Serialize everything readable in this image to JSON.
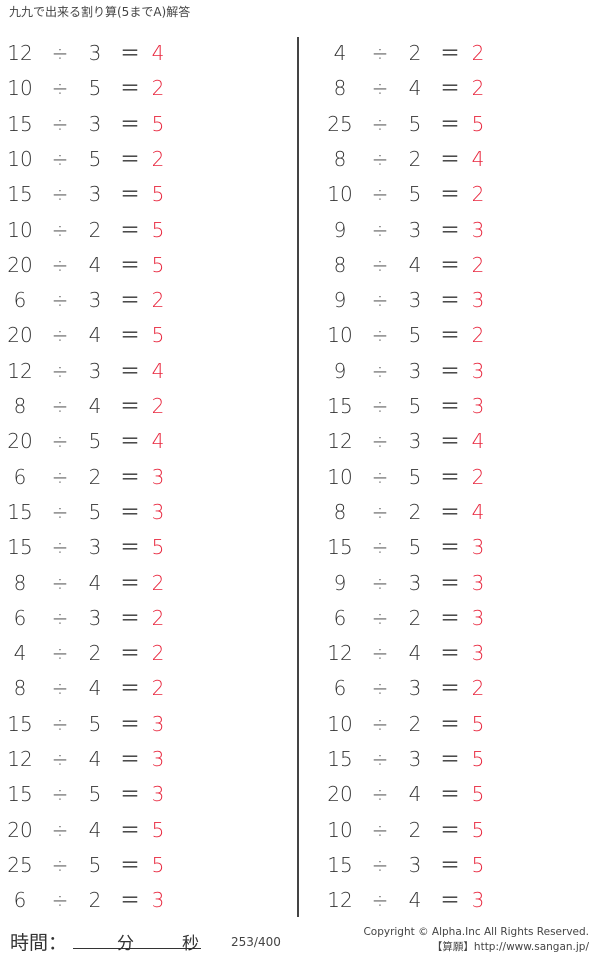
{
  "title": "九九で出来る割り算(5までA)解答",
  "operator": "÷",
  "equals": "＝",
  "answer_color": "#e8263d",
  "left_problems": [
    [
      "12",
      "3",
      "4"
    ],
    [
      "10",
      "5",
      "2"
    ],
    [
      "15",
      "3",
      "5"
    ],
    [
      "10",
      "5",
      "2"
    ],
    [
      "15",
      "3",
      "5"
    ],
    [
      "10",
      "2",
      "5"
    ],
    [
      "20",
      "4",
      "5"
    ],
    [
      "6",
      "3",
      "2"
    ],
    [
      "20",
      "4",
      "5"
    ],
    [
      "12",
      "3",
      "4"
    ],
    [
      "8",
      "4",
      "2"
    ],
    [
      "20",
      "5",
      "4"
    ],
    [
      "6",
      "2",
      "3"
    ],
    [
      "15",
      "5",
      "3"
    ],
    [
      "15",
      "3",
      "5"
    ],
    [
      "8",
      "4",
      "2"
    ],
    [
      "6",
      "3",
      "2"
    ],
    [
      "4",
      "2",
      "2"
    ],
    [
      "8",
      "4",
      "2"
    ],
    [
      "15",
      "5",
      "3"
    ],
    [
      "12",
      "4",
      "3"
    ],
    [
      "15",
      "5",
      "3"
    ],
    [
      "20",
      "4",
      "5"
    ],
    [
      "25",
      "5",
      "5"
    ],
    [
      "6",
      "2",
      "3"
    ]
  ],
  "right_problems": [
    [
      "4",
      "2",
      "2"
    ],
    [
      "8",
      "4",
      "2"
    ],
    [
      "25",
      "5",
      "5"
    ],
    [
      "8",
      "2",
      "4"
    ],
    [
      "10",
      "5",
      "2"
    ],
    [
      "9",
      "3",
      "3"
    ],
    [
      "8",
      "4",
      "2"
    ],
    [
      "9",
      "3",
      "3"
    ],
    [
      "10",
      "5",
      "2"
    ],
    [
      "9",
      "3",
      "3"
    ],
    [
      "15",
      "5",
      "3"
    ],
    [
      "12",
      "3",
      "4"
    ],
    [
      "10",
      "5",
      "2"
    ],
    [
      "8",
      "2",
      "4"
    ],
    [
      "15",
      "5",
      "3"
    ],
    [
      "9",
      "3",
      "3"
    ],
    [
      "6",
      "2",
      "3"
    ],
    [
      "12",
      "4",
      "3"
    ],
    [
      "6",
      "3",
      "2"
    ],
    [
      "10",
      "2",
      "5"
    ],
    [
      "15",
      "3",
      "5"
    ],
    [
      "20",
      "4",
      "5"
    ],
    [
      "10",
      "2",
      "5"
    ],
    [
      "15",
      "3",
      "5"
    ],
    [
      "12",
      "4",
      "3"
    ]
  ],
  "footer": {
    "time_label": "時間：",
    "minutes": "分",
    "seconds": "秒",
    "page": "253/400",
    "copyright": "Copyright © Alpha.Inc All Rights Reserved.",
    "site": "【算願】http://www.sangan.jp/"
  }
}
